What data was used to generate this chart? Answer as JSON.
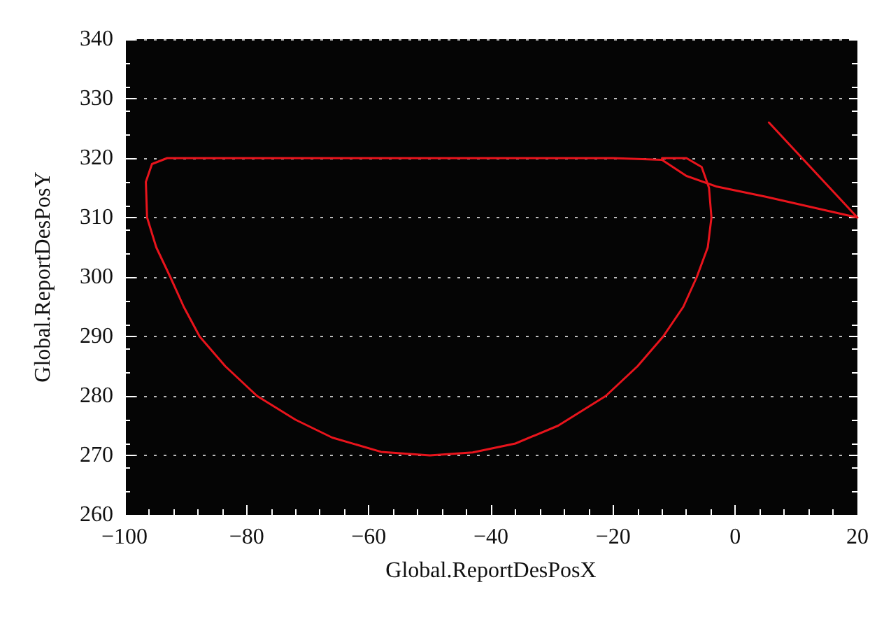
{
  "chart_data": {
    "type": "line",
    "xlabel": "Global.ReportDesPosX",
    "ylabel": "Global.ReportDesPosY",
    "xlim": [
      -100,
      20
    ],
    "xticks": [
      -100,
      -80,
      -60,
      -40,
      -20,
      0,
      20
    ],
    "ylim": [
      260,
      340
    ],
    "yticks": [
      260,
      270,
      280,
      290,
      300,
      310,
      320,
      330,
      340
    ],
    "grid": "y",
    "marker": "none",
    "line_style": "solid",
    "series": [
      {
        "color": "#e8141c",
        "x": [
          5.5,
          20,
          5,
          -3,
          -8,
          -12,
          -20,
          -40,
          -60,
          -80,
          -93,
          -95.5,
          -96.5,
          -96.3,
          -94.8,
          -92.5,
          -90.3,
          -87.7,
          -83.5,
          -78.3,
          -72,
          -66,
          -58,
          -50,
          -43,
          -36,
          -29,
          -21.2,
          -16,
          -11.8,
          -8.5,
          -6.3,
          -4.5,
          -3.9,
          -4.3,
          -5.5,
          -8,
          -12
        ],
        "values": [
          326,
          310,
          313.5,
          315.2,
          317,
          319.7,
          320,
          320,
          320,
          320,
          320,
          319,
          316,
          310,
          305,
          300,
          295,
          290,
          285,
          280,
          276,
          273,
          270.6,
          270,
          270.5,
          272,
          275,
          280,
          285,
          290,
          295,
          300,
          305,
          310,
          315,
          318.5,
          320,
          320
        ]
      }
    ]
  }
}
